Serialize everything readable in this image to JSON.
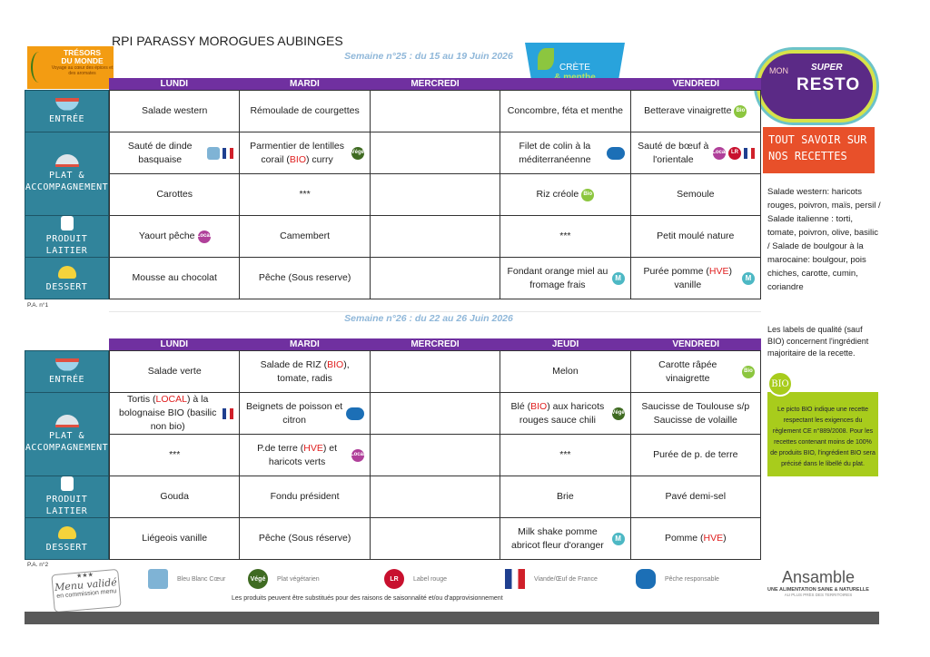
{
  "title": "RPI PARASSY MOROGUES AUBINGES",
  "logos": {
    "tresors": {
      "line1": "TRÉSORS",
      "line2": "DU MONDE",
      "tagline": "Voyage au cœur des épices et des aromates"
    },
    "crete": {
      "line1": "CRÈTE",
      "line2": "& menthe"
    },
    "resto": {
      "mon": "MON",
      "super": "SUPER",
      "resto": "RESTO"
    },
    "ansamble": {
      "name": "Ansamble",
      "tagline": "UNE ALIMENTATION SAINE & NATURELLE",
      "sub": "AU PLUS PRÈS DES TERRITOIRES"
    },
    "stamp": {
      "line1": "Menu validé",
      "line2": "en commission menu"
    }
  },
  "categories": [
    "Entrée",
    "Plat & accompagnement",
    "Produit laitier",
    "Dessert"
  ],
  "colors": {
    "header": "#7030a0",
    "category": "#31849b",
    "highlight": "#e02020",
    "week": "#8fb7d9",
    "recipes_box": "#e8502a",
    "bio_box": "#a8cc1c"
  },
  "weeks": [
    {
      "label": "Semaine n°25 : du 15 au 19 Juin 2026",
      "days": [
        "LUNDI",
        "MARDI",
        "MERCREDI",
        "",
        "VENDREDI"
      ],
      "pa": "P.A. n°1",
      "rows": [
        [
          {
            "text": "Salade western"
          },
          {
            "text": "Rémoulade de courgettes"
          },
          {
            "text": ""
          },
          {
            "text": "Concombre, féta et menthe"
          },
          {
            "text": "Betterave vinaigrette",
            "icons": [
              "bio"
            ]
          }
        ],
        [
          {
            "text": "Sauté de dinde basquaise",
            "icons": [
              "bbc",
              "fr"
            ]
          },
          {
            "text": "Parmentier de lentilles corail (BIO) curry",
            "hl": "BIO",
            "icons": [
              "vege"
            ]
          },
          {
            "text": ""
          },
          {
            "text": "Filet de colin à la méditerranéenne",
            "icons": [
              "fish"
            ]
          },
          {
            "text": "Sauté de bœuf à l'orientale",
            "icons": [
              "local",
              "lr",
              "fr"
            ]
          }
        ],
        [
          {
            "text": "Carottes"
          },
          {
            "text": "***"
          },
          {
            "text": ""
          },
          {
            "text": "Riz créole",
            "icons": [
              "bio"
            ]
          },
          {
            "text": "Semoule"
          }
        ],
        [
          {
            "text": "Yaourt pêche",
            "icons": [
              "local"
            ]
          },
          {
            "text": "Camembert"
          },
          {
            "text": ""
          },
          {
            "text": "***"
          },
          {
            "text": "Petit moulé nature"
          }
        ],
        [
          {
            "text": "Mousse au chocolat"
          },
          {
            "text": "Pêche (Sous reserve)"
          },
          {
            "text": ""
          },
          {
            "text": "Fondant orange miel au fromage frais",
            "icons": [
              "m"
            ]
          },
          {
            "text": "Purée pomme (HVE) vanille",
            "hl": "HVE",
            "icons": [
              "m"
            ]
          }
        ]
      ]
    },
    {
      "label": "Semaine n°26 : du 22 au 26 Juin 2026",
      "days": [
        "LUNDI",
        "MARDI",
        "MERCREDI",
        "JEUDI",
        "VENDREDI"
      ],
      "pa": "P.A. n°2",
      "rows": [
        [
          {
            "text": "Salade verte"
          },
          {
            "text": "Salade de RIZ (BIO), tomate, radis",
            "hl": "BIO"
          },
          {
            "text": ""
          },
          {
            "text": "Melon"
          },
          {
            "text": "Carotte râpée vinaigrette",
            "icons": [
              "bio"
            ]
          }
        ],
        [
          {
            "text": "Tortis (LOCAL) à la bolognaise BIO (basilic non bio)",
            "hl": "LOCAL",
            "icons": [
              "fr"
            ]
          },
          {
            "text": "Beignets de poisson et citron",
            "icons": [
              "fish"
            ]
          },
          {
            "text": ""
          },
          {
            "text": "Blé (BIO) aux haricots rouges sauce chili",
            "hl": "BIO",
            "icons": [
              "vege"
            ]
          },
          {
            "text": "Saucisse de Toulouse s/p Saucisse de volaille"
          }
        ],
        [
          {
            "text": "***"
          },
          {
            "text": "P.de terre (HVE) et haricots verts",
            "hl": "HVE",
            "icons": [
              "local"
            ]
          },
          {
            "text": ""
          },
          {
            "text": "***"
          },
          {
            "text": "Purée de p. de terre"
          }
        ],
        [
          {
            "text": "Gouda"
          },
          {
            "text": "Fondu président"
          },
          {
            "text": ""
          },
          {
            "text": "Brie"
          },
          {
            "text": "Pavé demi-sel"
          }
        ],
        [
          {
            "text": "Liégeois vanille"
          },
          {
            "text": "Pêche (Sous réserve)"
          },
          {
            "text": ""
          },
          {
            "text": "Milk shake pomme abricot fleur d'oranger",
            "icons": [
              "m"
            ]
          },
          {
            "text": "Pomme (HVE)",
            "hl": "HVE"
          }
        ]
      ]
    }
  ],
  "sidebar": {
    "recipes_title": "TOUT SAVOIR SUR NOS RECETTES",
    "recipes_text": "Salade western: haricots rouges, poivron, maïs, persil / Salade italienne : torti, tomate, poivron, olive, basilic / Salade de boulgour à la marocaine: boulgour, pois chiches, carotte, cumin, coriandre",
    "labels_note": "Les labels de qualité (sauf BIO) concernent l'ingrédient majoritaire de la recette.",
    "bio_badge": "BIO",
    "bio_text": "Le picto BIO indique une recette respectant les exigences du règlement CE n°889/2008. Pour les recettes contenant moins de 100% de produits BIO, l'ingrédient BIO sera précisé dans le libellé du plat."
  },
  "icon_text": {
    "bio": "Bio",
    "vege": "Végé",
    "local": "Local",
    "m": "M",
    "lr": "LR",
    "fish": "",
    "fr": "",
    "bbc": ""
  },
  "legend": [
    {
      "icon": "bbc",
      "label": "Bleu Blanc Cœur"
    },
    {
      "icon": "vege",
      "label": "Plat végétarien"
    },
    {
      "icon": "lr",
      "label": "Label rouge"
    },
    {
      "icon": "fr",
      "label": "Viande/Œuf de France"
    },
    {
      "icon": "fish",
      "label": "Pêche responsable"
    }
  ],
  "footer_note": "Les produits peuvent être substitués pour des raisons de saisonnalité et/ou d'approvisionnement"
}
